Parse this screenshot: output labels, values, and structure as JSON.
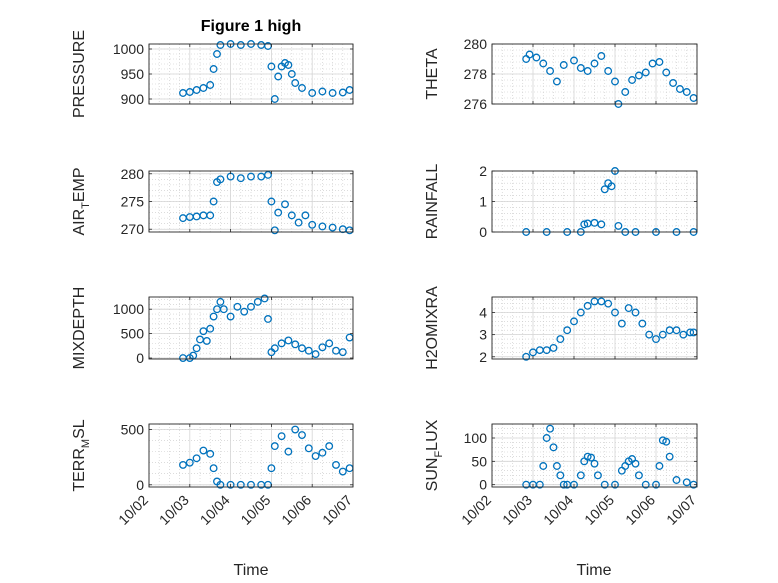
{
  "figure": {
    "title": "Figure 1 high",
    "background": "#ffffff"
  },
  "x_tick_labels": [
    "10/02",
    "10/03",
    "10/04",
    "10/05",
    "10/06",
    "10/07"
  ],
  "x_label": "Time",
  "chart_data": [
    {
      "type": "scatter",
      "ylabel": {
        "base": "PRESSURE"
      },
      "x": [
        "10/02 20:00",
        "10/03 00:00",
        "10/03 04:00",
        "10/03 08:00",
        "10/03 12:00",
        "10/03 14:00",
        "10/03 16:00",
        "10/03 18:00",
        "10/04 00:00",
        "10/04 06:00",
        "10/04 12:00",
        "10/04 18:00",
        "10/04 22:00",
        "10/05 00:00",
        "10/05 02:00",
        "10/05 04:00",
        "10/05 06:00",
        "10/05 08:00",
        "10/05 10:00",
        "10/05 12:00",
        "10/05 14:00",
        "10/05 18:00",
        "10/06 00:00",
        "10/06 06:00",
        "10/06 12:00",
        "10/06 18:00",
        "10/06 22:00"
      ],
      "y": [
        912,
        914,
        918,
        922,
        928,
        960,
        990,
        1008,
        1010,
        1008,
        1010,
        1008,
        1006,
        965,
        900,
        945,
        965,
        972,
        968,
        950,
        932,
        922,
        912,
        915,
        912,
        913,
        918
      ],
      "ylim": [
        890,
        1010
      ],
      "yticks": [
        900,
        950,
        1000
      ],
      "color": "#0072BD"
    },
    {
      "type": "scatter",
      "ylabel": {
        "base": "THETA"
      },
      "x": [
        "10/02 20:00",
        "10/02 22:00",
        "10/03 02:00",
        "10/03 06:00",
        "10/03 10:00",
        "10/03 14:00",
        "10/03 18:00",
        "10/04 00:00",
        "10/04 04:00",
        "10/04 08:00",
        "10/04 12:00",
        "10/04 16:00",
        "10/04 20:00",
        "10/05 00:00",
        "10/05 02:00",
        "10/05 06:00",
        "10/05 10:00",
        "10/05 14:00",
        "10/05 18:00",
        "10/05 22:00",
        "10/06 02:00",
        "10/06 06:00",
        "10/06 10:00",
        "10/06 14:00",
        "10/06 18:00",
        "10/06 22:00"
      ],
      "y": [
        279.0,
        279.3,
        279.1,
        278.7,
        278.2,
        277.5,
        278.6,
        278.9,
        278.4,
        278.2,
        278.7,
        279.2,
        278.2,
        277.5,
        276.0,
        276.8,
        277.6,
        277.9,
        278.1,
        278.7,
        278.8,
        278.1,
        277.4,
        277.0,
        276.8,
        276.4
      ],
      "ylim": [
        276,
        280
      ],
      "yticks": [
        276,
        278,
        280
      ],
      "color": "#0072BD"
    },
    {
      "type": "scatter",
      "ylabel": {
        "base": "AIR",
        "sub": "T",
        "tail": "EMP"
      },
      "x": [
        "10/02 20:00",
        "10/03 00:00",
        "10/03 04:00",
        "10/03 08:00",
        "10/03 12:00",
        "10/03 14:00",
        "10/03 16:00",
        "10/03 18:00",
        "10/04 00:00",
        "10/04 06:00",
        "10/04 12:00",
        "10/04 18:00",
        "10/04 22:00",
        "10/05 00:00",
        "10/05 02:00",
        "10/05 04:00",
        "10/05 08:00",
        "10/05 12:00",
        "10/05 16:00",
        "10/05 20:00",
        "10/06 00:00",
        "10/06 06:00",
        "10/06 12:00",
        "10/06 18:00",
        "10/06 22:00"
      ],
      "y": [
        272,
        272.2,
        272.3,
        272.5,
        272.5,
        275,
        278.5,
        279,
        279.5,
        279.2,
        279.5,
        279.5,
        279.8,
        275,
        269.8,
        273,
        274.5,
        272.5,
        271.2,
        272.5,
        270.8,
        270.5,
        270.3,
        270.0,
        269.8
      ],
      "ylim": [
        269.5,
        280.5
      ],
      "yticks": [
        270,
        275,
        280
      ],
      "color": "#0072BD"
    },
    {
      "type": "scatter",
      "ylabel": {
        "base": "RAINFALL"
      },
      "x": [
        "10/02 20:00",
        "10/03 08:00",
        "10/03 20:00",
        "10/04 04:00",
        "10/04 06:00",
        "10/04 08:00",
        "10/04 12:00",
        "10/04 16:00",
        "10/04 18:00",
        "10/04 20:00",
        "10/04 22:00",
        "10/05 00:00",
        "10/05 02:00",
        "10/05 06:00",
        "10/05 12:00",
        "10/06 00:00",
        "10/06 12:00",
        "10/06 22:00"
      ],
      "y": [
        0,
        0,
        0,
        0,
        0.25,
        0.28,
        0.3,
        0.25,
        1.4,
        1.6,
        1.5,
        2.0,
        0.2,
        0,
        0,
        0,
        0,
        0
      ],
      "ylim": [
        0,
        2
      ],
      "yticks": [
        0,
        1,
        2
      ],
      "color": "#0072BD"
    },
    {
      "type": "scatter",
      "ylabel": {
        "base": "MIXDEPTH"
      },
      "x": [
        "10/02 20:00",
        "10/03 00:00",
        "10/03 02:00",
        "10/03 04:00",
        "10/03 06:00",
        "10/03 08:00",
        "10/03 10:00",
        "10/03 12:00",
        "10/03 14:00",
        "10/03 16:00",
        "10/03 18:00",
        "10/03 20:00",
        "10/04 00:00",
        "10/04 04:00",
        "10/04 08:00",
        "10/04 12:00",
        "10/04 16:00",
        "10/04 20:00",
        "10/04 22:00",
        "10/05 00:00",
        "10/05 02:00",
        "10/05 06:00",
        "10/05 10:00",
        "10/05 14:00",
        "10/05 18:00",
        "10/05 22:00",
        "10/06 02:00",
        "10/06 06:00",
        "10/06 10:00",
        "10/06 14:00",
        "10/06 18:00",
        "10/06 22:00"
      ],
      "y": [
        0,
        0,
        50,
        200,
        380,
        550,
        350,
        600,
        850,
        1000,
        1150,
        1000,
        850,
        1050,
        950,
        1050,
        1150,
        1220,
        800,
        120,
        200,
        300,
        360,
        280,
        200,
        150,
        80,
        220,
        300,
        150,
        120,
        420
      ],
      "ylim": [
        -20,
        1250
      ],
      "yticks": [
        0,
        500,
        1000
      ],
      "color": "#0072BD"
    },
    {
      "type": "scatter",
      "ylabel": {
        "base": "H2OMIXRA"
      },
      "x": [
        "10/02 20:00",
        "10/03 00:00",
        "10/03 04:00",
        "10/03 08:00",
        "10/03 12:00",
        "10/03 16:00",
        "10/03 20:00",
        "10/04 00:00",
        "10/04 04:00",
        "10/04 08:00",
        "10/04 12:00",
        "10/04 16:00",
        "10/04 20:00",
        "10/05 00:00",
        "10/05 04:00",
        "10/05 08:00",
        "10/05 12:00",
        "10/05 16:00",
        "10/05 20:00",
        "10/06 00:00",
        "10/06 04:00",
        "10/06 08:00",
        "10/06 12:00",
        "10/06 16:00",
        "10/06 20:00",
        "10/06 22:00"
      ],
      "y": [
        2.0,
        2.2,
        2.3,
        2.3,
        2.4,
        2.8,
        3.2,
        3.6,
        4.0,
        4.3,
        4.5,
        4.5,
        4.4,
        4.0,
        3.5,
        4.2,
        4.0,
        3.5,
        3.0,
        2.8,
        3.0,
        3.2,
        3.2,
        3.0,
        3.1,
        3.1
      ],
      "ylim": [
        1.9,
        4.7
      ],
      "yticks": [
        2,
        3,
        4
      ],
      "color": "#0072BD"
    },
    {
      "type": "scatter",
      "ylabel": {
        "base": "TERR",
        "sub": "M",
        "tail": "SL"
      },
      "x": [
        "10/02 20:00",
        "10/03 00:00",
        "10/03 04:00",
        "10/03 08:00",
        "10/03 12:00",
        "10/03 14:00",
        "10/03 16:00",
        "10/03 18:00",
        "10/04 00:00",
        "10/04 06:00",
        "10/04 12:00",
        "10/04 18:00",
        "10/04 22:00",
        "10/05 00:00",
        "10/05 02:00",
        "10/05 06:00",
        "10/05 10:00",
        "10/05 14:00",
        "10/05 18:00",
        "10/05 22:00",
        "10/06 02:00",
        "10/06 06:00",
        "10/06 10:00",
        "10/06 14:00",
        "10/06 18:00",
        "10/06 22:00"
      ],
      "y": [
        180,
        200,
        240,
        310,
        280,
        150,
        30,
        0,
        0,
        0,
        0,
        0,
        0,
        150,
        350,
        440,
        300,
        500,
        450,
        330,
        260,
        290,
        350,
        180,
        120,
        150
      ],
      "ylim": [
        -20,
        550
      ],
      "yticks": [
        0,
        500
      ],
      "color": "#0072BD"
    },
    {
      "type": "scatter",
      "ylabel": {
        "base": "SUN",
        "sub": "F",
        "tail": "LUX"
      },
      "x": [
        "10/02 20:00",
        "10/03 00:00",
        "10/03 04:00",
        "10/03 06:00",
        "10/03 08:00",
        "10/03 10:00",
        "10/03 12:00",
        "10/03 14:00",
        "10/03 16:00",
        "10/03 18:00",
        "10/03 20:00",
        "10/04 00:00",
        "10/04 04:00",
        "10/04 06:00",
        "10/04 08:00",
        "10/04 10:00",
        "10/04 12:00",
        "10/04 14:00",
        "10/04 18:00",
        "10/05 00:00",
        "10/05 04:00",
        "10/05 06:00",
        "10/05 08:00",
        "10/05 10:00",
        "10/05 12:00",
        "10/05 14:00",
        "10/05 18:00",
        "10/06 00:00",
        "10/06 02:00",
        "10/06 04:00",
        "10/06 06:00",
        "10/06 08:00",
        "10/06 12:00",
        "10/06 18:00",
        "10/06 22:00"
      ],
      "y": [
        0,
        0,
        0,
        40,
        100,
        120,
        80,
        40,
        20,
        0,
        0,
        0,
        20,
        50,
        60,
        58,
        45,
        20,
        0,
        0,
        30,
        40,
        50,
        55,
        45,
        20,
        0,
        0,
        40,
        95,
        92,
        60,
        10,
        5,
        0
      ],
      "ylim": [
        -5,
        130
      ],
      "yticks": [
        0,
        50,
        100
      ],
      "color": "#0072BD"
    }
  ]
}
